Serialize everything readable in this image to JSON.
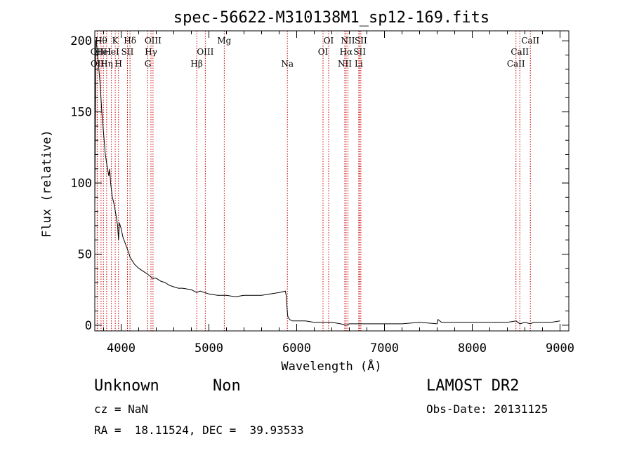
{
  "chart_data": {
    "type": "line",
    "title": "spec-56622-M310138M1_sp12-169.fits",
    "xlabel": "Wavelength (Å)",
    "ylabel": "Flux (relative)",
    "xlim": [
      3700,
      9100
    ],
    "ylim": [
      -4,
      207
    ],
    "xticks": [
      4000,
      5000,
      6000,
      7000,
      8000,
      9000
    ],
    "yticks": [
      0,
      50,
      100,
      150,
      200
    ],
    "grid": false,
    "legend": "none",
    "series": [
      {
        "x": [
          3700,
          3712,
          3725,
          3740,
          3760,
          3780,
          3800,
          3820,
          3840,
          3860,
          3870,
          3880,
          3900,
          3920,
          3940,
          3960,
          3970,
          3980,
          4000,
          4020,
          4050,
          4080,
          4101,
          4120,
          4150,
          4200,
          4250,
          4300,
          4340,
          4350,
          4400,
          4450,
          4500,
          4550,
          4600,
          4650,
          4700,
          4800,
          4861,
          4900,
          5000,
          5100,
          5200,
          5300,
          5400,
          5500,
          5600,
          5700,
          5800,
          5870,
          5880,
          5890,
          5895,
          5900,
          5920,
          5950,
          6000,
          6100,
          6200,
          6300,
          6400,
          6500,
          6563,
          6600,
          6700,
          6800,
          6900,
          7000,
          7200,
          7400,
          7600,
          7610,
          7650,
          7800,
          8000,
          8200,
          8400,
          8500,
          8542,
          8600,
          8662,
          8700,
          8800,
          8900,
          9000
        ],
        "y": [
          80,
          200,
          195,
          185,
          170,
          150,
          135,
          120,
          112,
          105,
          110,
          100,
          90,
          85,
          78,
          70,
          60,
          72,
          68,
          62,
          57,
          52,
          48,
          46,
          43,
          40,
          38,
          36,
          34,
          33,
          33,
          31,
          30,
          28,
          27,
          26,
          26,
          25,
          23,
          24,
          22,
          21,
          21,
          20,
          21,
          21,
          21,
          22,
          23,
          24,
          21,
          12,
          8,
          6,
          4,
          3,
          3,
          3,
          2,
          2,
          2,
          1,
          0,
          1,
          1,
          1,
          1,
          1,
          1,
          2,
          1,
          4,
          2,
          2,
          2,
          2,
          2,
          3,
          1,
          2,
          1,
          2,
          2,
          2,
          3
        ]
      }
    ],
    "line_color": "#000000",
    "marker_color": "#cc0000",
    "lines": [
      {
        "x": 3727,
        "label": "OII",
        "row": 2
      },
      {
        "x": 3729,
        "label": "OII",
        "row": 3
      },
      {
        "x": 3771,
        "label": "Hθ",
        "row": 1
      },
      {
        "x": 3798,
        "label": "HeI",
        "row": 2
      },
      {
        "x": 3835,
        "label": "Hη",
        "row": 3
      },
      {
        "x": 3889,
        "label": "HeI",
        "row": 2
      },
      {
        "x": 3933,
        "label": "K",
        "row": 1
      },
      {
        "x": 3970,
        "label": "H",
        "row": 3
      },
      {
        "x": 4072,
        "label": "SII",
        "row": 2
      },
      {
        "x": 4101,
        "label": "Hδ",
        "row": 1
      },
      {
        "x": 4304,
        "label": "G",
        "row": 3
      },
      {
        "x": 4340,
        "label": "Hγ",
        "row": 2
      },
      {
        "x": 4363,
        "label": "OIII",
        "row": 1
      },
      {
        "x": 4861,
        "label": "Hβ",
        "row": 3
      },
      {
        "x": 4959,
        "label": "OIII",
        "row": 2
      },
      {
        "x": 5175,
        "label": "Mg",
        "row": 1
      },
      {
        "x": 5894,
        "label": "Na",
        "row": 3
      },
      {
        "x": 6300,
        "label": "OI",
        "row": 2
      },
      {
        "x": 6364,
        "label": "OI",
        "row": 1
      },
      {
        "x": 6548,
        "label": "NII",
        "row": 3
      },
      {
        "x": 6563,
        "label": "Hα",
        "row": 2
      },
      {
        "x": 6584,
        "label": "NII",
        "row": 1
      },
      {
        "x": 6707,
        "label": "Li",
        "row": 3
      },
      {
        "x": 6717,
        "label": "SII",
        "row": 2
      },
      {
        "x": 6731,
        "label": "SII",
        "row": 1
      },
      {
        "x": 8498,
        "label": "CaII",
        "row": 3
      },
      {
        "x": 8542,
        "label": "CaII",
        "row": 2
      },
      {
        "x": 8662,
        "label": "CaII",
        "row": 1
      }
    ]
  },
  "info": {
    "object_class": "Unknown",
    "subclass": "Non",
    "survey": "LAMOST DR2",
    "redshift": "cz = NaN",
    "obs_date": "Obs-Date: 20131125",
    "coords": "RA =  18.11524, DEC =  39.93533"
  }
}
